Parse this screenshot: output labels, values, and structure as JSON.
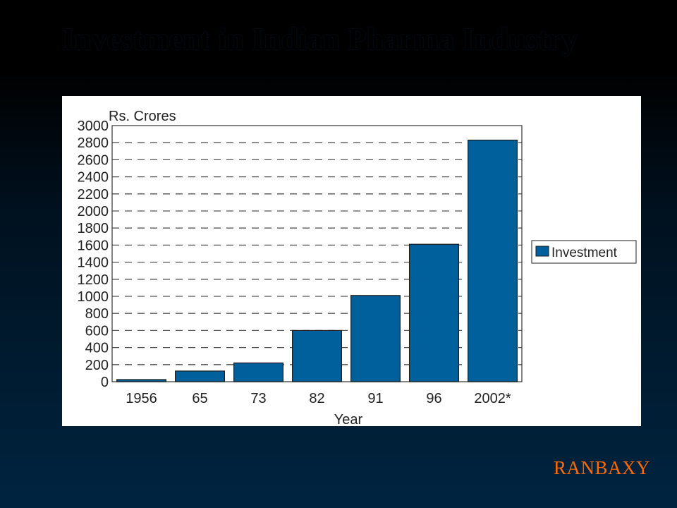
{
  "slide": {
    "title": "Investment in Indian Pharma Industry",
    "brand": "RANBAXY"
  },
  "colors": {
    "bar": "#00609b",
    "bar_stroke": "#1a1a1a",
    "grid": "#555555",
    "brand": "#ff6a00"
  },
  "chart_data": {
    "type": "bar",
    "ylabel": "Rs. Crores",
    "xlabel": "Year",
    "categories": [
      "1956",
      "65",
      "73",
      "82",
      "91",
      "96",
      "2002*"
    ],
    "series": [
      {
        "name": "Investment",
        "values": [
          25,
          125,
          220,
          600,
          1010,
          1610,
          2830
        ]
      }
    ],
    "ylim": [
      0,
      3000
    ],
    "yticks": [
      0,
      200,
      400,
      600,
      800,
      1000,
      1200,
      1400,
      1600,
      1800,
      2000,
      2200,
      2400,
      2600,
      2800,
      3000
    ],
    "grid": "dashed horizontal",
    "legend_position": "right"
  }
}
